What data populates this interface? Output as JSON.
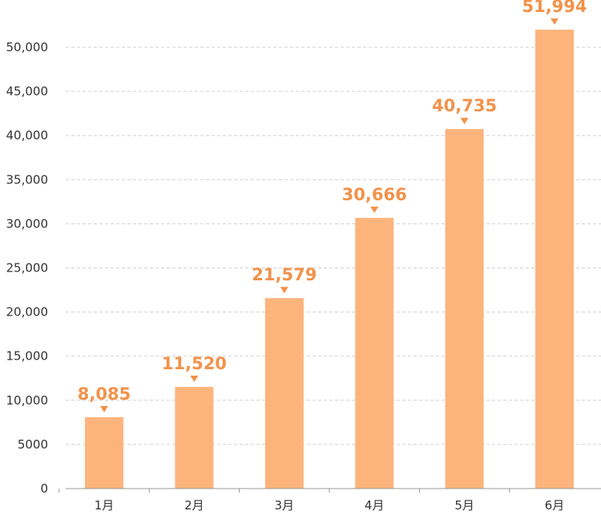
{
  "chart_data": {
    "type": "bar",
    "categories": [
      "1月",
      "2月",
      "3月",
      "4月",
      "5月",
      "6月"
    ],
    "values": [
      8085,
      11520,
      21579,
      30666,
      40735,
      51994
    ],
    "data_labels": [
      "8,085",
      "11,520",
      "21,579",
      "30,666",
      "40,735",
      "51,994"
    ],
    "y_ticks": [
      0,
      5000,
      10000,
      15000,
      20000,
      25000,
      30000,
      35000,
      40000,
      45000,
      50000
    ],
    "y_tick_labels": [
      "0",
      "5000",
      "10,000",
      "15,000",
      "20,000",
      "25,000",
      "30,000",
      "35,000",
      "40,000",
      "45,000",
      "50,000"
    ],
    "ylim": [
      0,
      50000
    ],
    "grid": true,
    "legend": "none",
    "title": "",
    "xlabel": "",
    "ylabel": ""
  },
  "colors": {
    "bar": "#FDB47C",
    "label": "#F2924A",
    "grid": "#D0D0D0",
    "axis": "#999999",
    "text": "#333333"
  }
}
